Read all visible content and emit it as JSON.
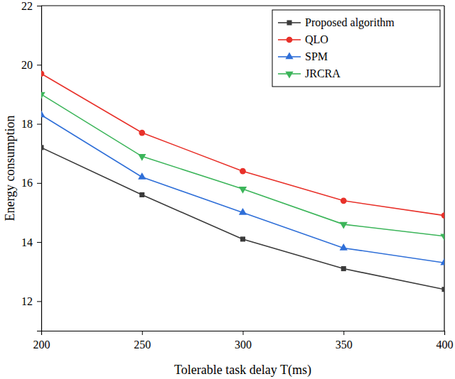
{
  "chart_data": {
    "type": "line",
    "x_label": "Tolerable task delay T(ms)",
    "y_label": "Energy consumption",
    "x": [
      200,
      250,
      300,
      350,
      400
    ],
    "xlim": [
      200,
      400
    ],
    "xticks": [
      200,
      250,
      300,
      350,
      400
    ],
    "ylim": [
      11,
      22
    ],
    "yticks": [
      12,
      14,
      16,
      18,
      20,
      22
    ],
    "grid": false,
    "legend": "upper right",
    "series": [
      {
        "name": "Proposed algorithm",
        "color": "#3a3a3a",
        "marker": "square",
        "values": [
          17.2,
          15.6,
          14.1,
          13.1,
          12.4
        ]
      },
      {
        "name": "QLO",
        "color": "#e8312a",
        "marker": "circle",
        "values": [
          19.7,
          17.7,
          16.4,
          15.4,
          14.9
        ]
      },
      {
        "name": "SPM",
        "color": "#2f6fd8",
        "marker": "triangle",
        "values": [
          18.3,
          16.2,
          15.0,
          13.8,
          13.3
        ]
      },
      {
        "name": "JRCRA",
        "color": "#3cb55a",
        "marker": "triangle-down",
        "values": [
          19.0,
          16.9,
          15.8,
          14.6,
          14.2
        ]
      }
    ]
  }
}
